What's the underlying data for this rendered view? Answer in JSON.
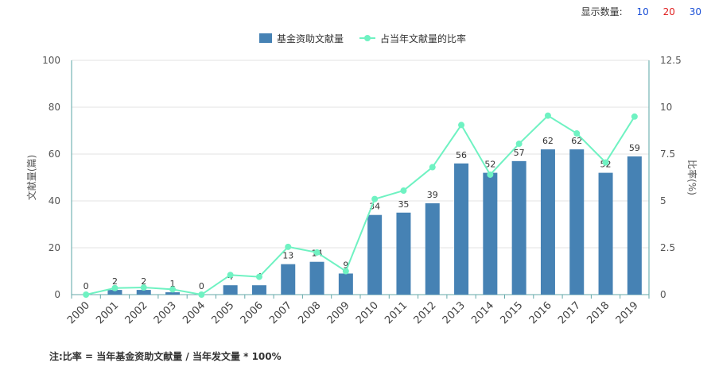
{
  "topbar": {
    "label": "显示数量:",
    "options": [
      {
        "label": "10",
        "color": "#1a4fd6"
      },
      {
        "label": "20",
        "color": "#e02020"
      },
      {
        "label": "30",
        "color": "#1a4fd6"
      }
    ]
  },
  "note": "注:比率 = 当年基金资助文献量 / 当年发文量 * 100%",
  "chart_data": {
    "type": "bar",
    "categories": [
      "2000",
      "2001",
      "2002",
      "2003",
      "2004",
      "2005",
      "2006",
      "2007",
      "2008",
      "2009",
      "2010",
      "2011",
      "2012",
      "2013",
      "2014",
      "2015",
      "2016",
      "2017",
      "2018",
      "2019"
    ],
    "series": [
      {
        "name": "基金资助文献量",
        "type": "bar",
        "axis": "left",
        "color": "#4682b4",
        "values": [
          0,
          2,
          2,
          1,
          0,
          4,
          4,
          13,
          14,
          9,
          34,
          35,
          39,
          56,
          52,
          57,
          62,
          62,
          52,
          59
        ]
      },
      {
        "name": "占当年文献量的比率",
        "type": "line",
        "axis": "right",
        "color": "#6ff2c2",
        "values": [
          0,
          0.35,
          0.38,
          0.28,
          0,
          1.05,
          0.95,
          2.55,
          2.25,
          1.25,
          5.1,
          5.55,
          6.8,
          9.05,
          6.4,
          8.05,
          9.55,
          8.6,
          7.05,
          9.5
        ]
      }
    ],
    "ylabel_left": "文献量(篇)",
    "ylabel_right": "比率(%)",
    "ylim_left": [
      0,
      100
    ],
    "ylim_right": [
      0,
      12.5
    ],
    "yticks_left": [
      "0",
      "20",
      "40",
      "60",
      "80",
      "100"
    ],
    "yticks_right": [
      "0",
      "2.5",
      "5",
      "7.5",
      "10",
      "12.5"
    ],
    "grid": true,
    "legend": "top-center"
  }
}
